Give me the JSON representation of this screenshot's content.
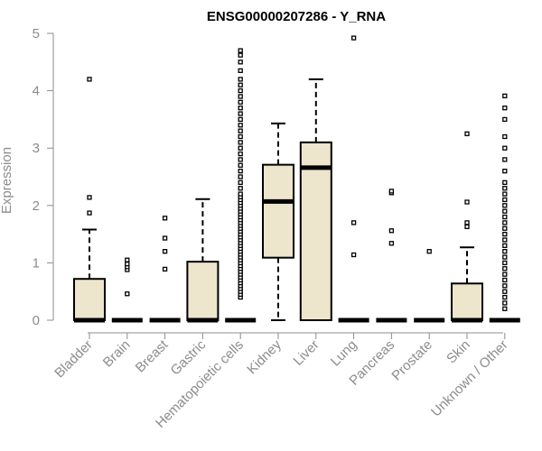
{
  "chart_data": {
    "type": "boxplot",
    "title": "ENSG00000207286 - Y_RNA",
    "xlabel": "",
    "ylabel": "Expression",
    "ylim": [
      0,
      5
    ],
    "yticks": [
      0,
      1,
      2,
      3,
      4,
      5
    ],
    "grid": false,
    "legend": "none",
    "colors": {
      "box_fill": "#ede5cc",
      "box_stroke": "#000000",
      "axis": "#8c8c8c",
      "text": "#8c8c8c"
    },
    "categories": [
      "Bladder",
      "Brain",
      "Breast",
      "Gastric",
      "Hematopoietic cells",
      "Kidney",
      "Liver",
      "Lung",
      "Pancreas",
      "Prostate",
      "Skin",
      "Unknown / Other"
    ],
    "boxes": [
      {
        "category": "Bladder",
        "min": 0,
        "q1": 0,
        "median": 0,
        "q3": 0.72,
        "max": 1.58,
        "outliers": [
          1.87,
          2.14,
          4.2
        ]
      },
      {
        "category": "Brain",
        "min": 0,
        "q1": 0,
        "median": 0,
        "q3": 0,
        "max": 0,
        "outliers": [
          0.46,
          0.88,
          0.93,
          0.98,
          1.05
        ]
      },
      {
        "category": "Breast",
        "min": 0,
        "q1": 0,
        "median": 0,
        "q3": 0,
        "max": 0,
        "outliers": [
          0.89,
          1.2,
          1.43,
          1.78
        ]
      },
      {
        "category": "Gastric",
        "min": 0,
        "q1": 0,
        "median": 0,
        "q3": 1.02,
        "max": 2.11,
        "outliers": []
      },
      {
        "category": "Hematopoietic cells",
        "min": 0,
        "q1": 0,
        "median": 0,
        "q3": 0,
        "max": 0,
        "outliers": [
          0.4,
          0.45,
          0.5,
          0.55,
          0.6,
          0.65,
          0.7,
          0.75,
          0.8,
          0.85,
          0.9,
          0.95,
          1.0,
          1.05,
          1.1,
          1.15,
          1.2,
          1.25,
          1.3,
          1.35,
          1.4,
          1.45,
          1.5,
          1.55,
          1.6,
          1.65,
          1.7,
          1.75,
          1.8,
          1.85,
          1.9,
          1.95,
          2.0,
          2.05,
          2.1,
          2.15,
          2.2,
          2.3,
          2.4,
          2.5,
          2.6,
          2.7,
          2.8,
          2.9,
          3.0,
          3.1,
          3.2,
          3.3,
          3.4,
          3.5,
          3.6,
          3.7,
          3.8,
          3.9,
          4.0,
          4.1,
          4.2,
          4.35,
          4.5,
          4.62,
          4.7
        ]
      },
      {
        "category": "Kidney",
        "min": 0,
        "q1": 1.09,
        "median": 2.07,
        "q3": 2.71,
        "max": 3.43,
        "outliers": []
      },
      {
        "category": "Liver",
        "min": 0,
        "q1": 0,
        "median": 2.66,
        "q3": 3.1,
        "max": 4.2,
        "outliers": []
      },
      {
        "category": "Lung",
        "min": 0,
        "q1": 0,
        "median": 0,
        "q3": 0,
        "max": 0,
        "outliers": [
          1.14,
          1.7,
          4.92
        ]
      },
      {
        "category": "Pancreas",
        "min": 0,
        "q1": 0,
        "median": 0,
        "q3": 0,
        "max": 0,
        "outliers": [
          1.34,
          1.56,
          2.22,
          2.25
        ]
      },
      {
        "category": "Prostate",
        "min": 0,
        "q1": 0,
        "median": 0,
        "q3": 0,
        "max": 0,
        "outliers": [
          1.2
        ]
      },
      {
        "category": "Skin",
        "min": 0,
        "q1": 0,
        "median": 0,
        "q3": 0.64,
        "max": 1.27,
        "outliers": [
          1.63,
          1.7,
          2.06,
          3.25
        ]
      },
      {
        "category": "Unknown / Other",
        "min": 0,
        "q1": 0,
        "median": 0,
        "q3": 0,
        "max": 0,
        "outliers": [
          0.2,
          0.3,
          0.4,
          0.5,
          0.6,
          0.7,
          0.8,
          0.9,
          1.0,
          1.1,
          1.2,
          1.3,
          1.4,
          1.5,
          1.6,
          1.7,
          1.8,
          1.9,
          2.0,
          2.1,
          2.2,
          2.3,
          2.4,
          2.6,
          2.8,
          3.0,
          3.2,
          3.5,
          3.7,
          3.91
        ]
      }
    ]
  }
}
